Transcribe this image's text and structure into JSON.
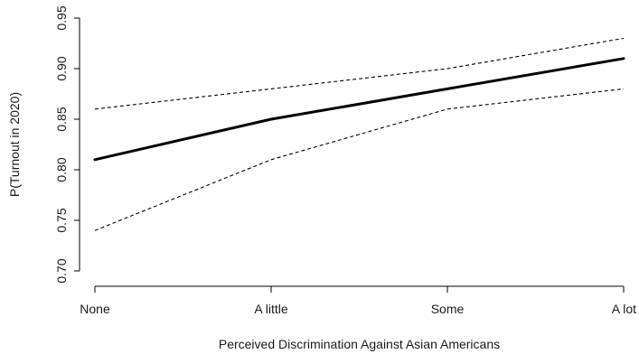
{
  "chart_data": {
    "type": "line",
    "title": "",
    "xlabel": "Perceived Discrimination Against Asian Americans",
    "ylabel": "P(Turnout in 2020)",
    "categories": [
      "None",
      "A little",
      "Some",
      "A lot"
    ],
    "ylim": [
      0.7,
      0.95
    ],
    "yticks": [
      "0.70",
      "0.75",
      "0.80",
      "0.85",
      "0.90",
      "0.95"
    ],
    "grid": false,
    "legend": "none",
    "series": [
      {
        "role": "estimate",
        "style": "solid-thick",
        "color": "#000000",
        "values": [
          0.81,
          0.85,
          0.88,
          0.91
        ]
      },
      {
        "role": "upper",
        "style": "dashed",
        "color": "#000000",
        "values": [
          0.86,
          0.88,
          0.9,
          0.93
        ]
      },
      {
        "role": "lower",
        "style": "dashed",
        "color": "#000000",
        "values": [
          0.74,
          0.81,
          0.86,
          0.88
        ]
      }
    ]
  }
}
